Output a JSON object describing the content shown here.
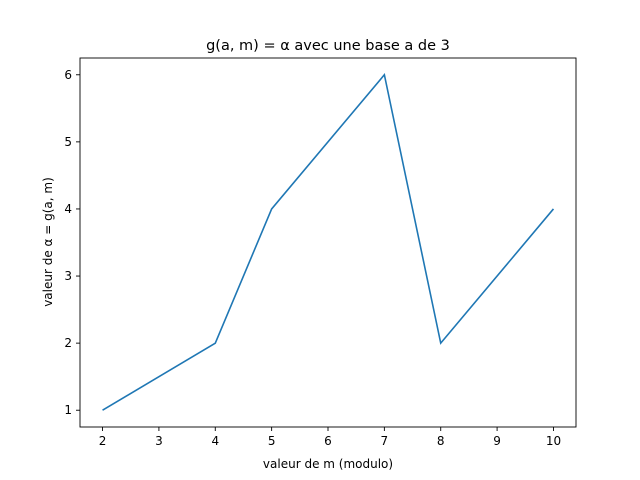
{
  "chart_data": {
    "type": "line",
    "title": "g(a, m) = α avec une base a de 3",
    "xlabel": "valeur de m (modulo)",
    "ylabel": "valeur de α = g(a, m)",
    "xlim": [
      1.6,
      10.4
    ],
    "ylim": [
      0.75,
      6.25
    ],
    "xticks": [
      2,
      3,
      4,
      5,
      6,
      7,
      8,
      9,
      10
    ],
    "yticks": [
      1,
      2,
      3,
      4,
      5,
      6
    ],
    "grid": false,
    "series": [
      {
        "name": "g(a, m)",
        "color": "#1f77b4",
        "x": [
          2,
          4,
          5,
          7,
          8,
          10
        ],
        "y": [
          1,
          2,
          4,
          6,
          2,
          4
        ]
      }
    ]
  }
}
